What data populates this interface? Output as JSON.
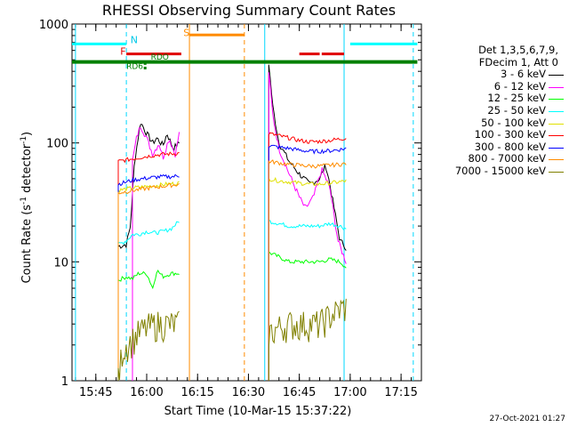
{
  "chart_data": {
    "type": "line",
    "title": "RHESSI Observing Summary Count Rates",
    "xlabel": "Start Time (10-Mar-15 15:37:22)",
    "ylabel_main": "Count Rate (s",
    "ylabel_sup1": "-1",
    "ylabel_mid": " detector",
    "ylabel_sup2": "-1",
    "ylabel_end": ")",
    "yscale": "log",
    "ylim": [
      1,
      1000
    ],
    "xlim_minutes": [
      15.633,
      17.35
    ],
    "x_ticks": [
      "15:45",
      "16:00",
      "16:15",
      "16:30",
      "16:45",
      "17:00",
      "17:15"
    ],
    "x_tick_minutes": [
      15.75,
      16.0,
      16.25,
      16.5,
      16.75,
      17.0,
      17.25
    ],
    "y_ticks": [
      "1",
      "10",
      "100",
      "1000"
    ],
    "y_tick_values": [
      1,
      10,
      100,
      1000
    ],
    "legend_head_1": "Det 1,3,5,6,7,9,",
    "legend_head_2": "FDecim 1, Att 0",
    "series": [
      {
        "name": "3 - 6 keV",
        "color": "#000000",
        "seg1": [
          [
            15.86,
            13.5
          ],
          [
            15.9,
            14
          ],
          [
            15.92,
            20
          ],
          [
            15.94,
            70
          ],
          [
            15.97,
            150
          ],
          [
            16.0,
            120
          ],
          [
            16.03,
            100
          ],
          [
            16.05,
            110
          ],
          [
            16.08,
            95
          ],
          [
            16.1,
            120
          ],
          [
            16.13,
            90
          ],
          [
            16.16,
            100
          ]
        ],
        "seg2": [
          [
            16.6,
            470
          ],
          [
            16.62,
            200
          ],
          [
            16.65,
            100
          ],
          [
            16.7,
            70
          ],
          [
            16.75,
            55
          ],
          [
            16.8,
            45
          ],
          [
            16.85,
            50
          ],
          [
            16.88,
            65
          ],
          [
            16.9,
            45
          ],
          [
            16.95,
            15
          ],
          [
            16.97,
            14
          ],
          [
            16.98,
            13
          ]
        ]
      },
      {
        "name": "6 - 12 keV",
        "color": "#ff00ff",
        "seg1": [
          [
            15.93,
            70
          ],
          [
            15.95,
            110
          ],
          [
            15.97,
            140
          ],
          [
            16.0,
            110
          ],
          [
            16.03,
            80
          ],
          [
            16.06,
            100
          ],
          [
            16.08,
            75
          ],
          [
            16.11,
            110
          ],
          [
            16.14,
            80
          ],
          [
            16.16,
            120
          ]
        ],
        "seg2": [
          [
            16.6,
            400
          ],
          [
            16.62,
            170
          ],
          [
            16.65,
            90
          ],
          [
            16.7,
            55
          ],
          [
            16.75,
            35
          ],
          [
            16.78,
            28
          ],
          [
            16.82,
            35
          ],
          [
            16.86,
            60
          ],
          [
            16.9,
            42
          ],
          [
            16.94,
            15
          ],
          [
            16.97,
            11
          ],
          [
            16.98,
            10
          ]
        ]
      },
      {
        "name": "12 - 25 keV",
        "color": "#00ff00",
        "seg1": [
          [
            15.86,
            7
          ],
          [
            15.9,
            7.5
          ],
          [
            15.93,
            7.2
          ],
          [
            15.96,
            8
          ],
          [
            16.0,
            8
          ],
          [
            16.03,
            6
          ],
          [
            16.05,
            8.5
          ],
          [
            16.08,
            7.5
          ],
          [
            16.12,
            8
          ],
          [
            16.16,
            8
          ]
        ],
        "seg2": [
          [
            16.6,
            12
          ],
          [
            16.65,
            11
          ],
          [
            16.7,
            10
          ],
          [
            16.75,
            10
          ],
          [
            16.8,
            10
          ],
          [
            16.85,
            10
          ],
          [
            16.9,
            10.5
          ],
          [
            16.95,
            10
          ],
          [
            16.98,
            9
          ]
        ]
      },
      {
        "name": "25 - 50 keV",
        "color": "#00ffff",
        "seg1": [
          [
            15.86,
            14
          ],
          [
            15.9,
            15
          ],
          [
            15.93,
            17
          ],
          [
            15.96,
            17
          ],
          [
            16.0,
            18
          ],
          [
            16.04,
            17.5
          ],
          [
            16.08,
            18
          ],
          [
            16.12,
            19
          ],
          [
            16.16,
            22
          ]
        ],
        "seg2": [
          [
            16.6,
            22
          ],
          [
            16.65,
            21
          ],
          [
            16.7,
            20
          ],
          [
            16.75,
            20
          ],
          [
            16.8,
            20
          ],
          [
            16.85,
            20
          ],
          [
            16.9,
            21
          ],
          [
            16.95,
            20
          ],
          [
            16.98,
            19
          ]
        ]
      },
      {
        "name": "50 - 100 keV",
        "color": "#e0e000",
        "seg1": [
          [
            15.86,
            40
          ],
          [
            15.9,
            41
          ],
          [
            15.94,
            42
          ],
          [
            16.0,
            43
          ],
          [
            16.05,
            44
          ],
          [
            16.1,
            45
          ],
          [
            16.16,
            46
          ]
        ],
        "seg2": [
          [
            16.6,
            50
          ],
          [
            16.65,
            48
          ],
          [
            16.7,
            47
          ],
          [
            16.75,
            46
          ],
          [
            16.8,
            45
          ],
          [
            16.85,
            45
          ],
          [
            16.9,
            46
          ],
          [
            16.95,
            47
          ],
          [
            16.98,
            48
          ]
        ]
      },
      {
        "name": "100 - 300 keV",
        "color": "#ff0000",
        "seg1": [
          [
            15.86,
            70
          ],
          [
            15.9,
            72
          ],
          [
            15.94,
            74
          ],
          [
            15.98,
            76
          ],
          [
            16.02,
            78
          ],
          [
            16.07,
            80
          ],
          [
            16.12,
            81
          ],
          [
            16.16,
            82
          ]
        ],
        "seg2": [
          [
            16.6,
            120
          ],
          [
            16.65,
            115
          ],
          [
            16.7,
            110
          ],
          [
            16.75,
            105
          ],
          [
            16.8,
            102
          ],
          [
            16.85,
            103
          ],
          [
            16.9,
            105
          ],
          [
            16.95,
            108
          ],
          [
            16.98,
            110
          ]
        ]
      },
      {
        "name": "300 - 800 keV",
        "color": "#0000ff",
        "seg1": [
          [
            15.86,
            45
          ],
          [
            15.9,
            47
          ],
          [
            15.94,
            49
          ],
          [
            15.98,
            50
          ],
          [
            16.02,
            51
          ],
          [
            16.07,
            52
          ],
          [
            16.12,
            52
          ],
          [
            16.16,
            53
          ]
        ],
        "seg2": [
          [
            16.6,
            95
          ],
          [
            16.65,
            92
          ],
          [
            16.7,
            90
          ],
          [
            16.75,
            87
          ],
          [
            16.8,
            85
          ],
          [
            16.85,
            85
          ],
          [
            16.9,
            86
          ],
          [
            16.95,
            88
          ],
          [
            16.98,
            90
          ]
        ]
      },
      {
        "name": "800 - 7000 keV",
        "color": "#ff8c00",
        "seg1": [
          [
            15.86,
            38
          ],
          [
            15.9,
            39
          ],
          [
            15.94,
            40
          ],
          [
            15.98,
            41
          ],
          [
            16.02,
            42
          ],
          [
            16.07,
            43
          ],
          [
            16.12,
            44
          ],
          [
            16.16,
            45
          ]
        ],
        "seg2": [
          [
            16.6,
            70
          ],
          [
            16.65,
            68
          ],
          [
            16.7,
            66
          ],
          [
            16.75,
            65
          ],
          [
            16.8,
            64
          ],
          [
            16.85,
            64
          ],
          [
            16.9,
            65
          ],
          [
            16.95,
            66
          ],
          [
            16.98,
            67
          ]
        ]
      },
      {
        "name": "7000 - 15000 keV",
        "color": "#808000",
        "seg1": [
          [
            15.86,
            1
          ],
          [
            15.88,
            1.8
          ],
          [
            15.9,
            2
          ],
          [
            15.93,
            2.2
          ],
          [
            15.96,
            2.5
          ],
          [
            16.0,
            2.8
          ],
          [
            16.05,
            3
          ],
          [
            16.1,
            3
          ],
          [
            16.16,
            3
          ]
        ],
        "seg2": [
          [
            16.6,
            2.5
          ],
          [
            16.65,
            2.8
          ],
          [
            16.7,
            3
          ],
          [
            16.75,
            3
          ],
          [
            16.8,
            3
          ],
          [
            16.85,
            3
          ],
          [
            16.9,
            3.5
          ],
          [
            16.95,
            4
          ],
          [
            16.98,
            4.2
          ]
        ]
      }
    ],
    "annotations": {
      "n_label": "N",
      "f_label": "F",
      "s_label": "S",
      "rdo_label": "RDO",
      "rd6_label": "RD6"
    },
    "n_bars": [
      [
        15.633,
        15.9
      ],
      [
        17.0,
        17.33
      ]
    ],
    "f_bars": [
      [
        15.9,
        16.17
      ],
      [
        16.75,
        16.85
      ],
      [
        16.86,
        16.97
      ]
    ],
    "s_bars": [
      [
        16.21,
        16.48
      ]
    ],
    "green_bar": [
      15.633,
      17.33
    ],
    "timestamp": "27-Oct-2021 01:27"
  }
}
